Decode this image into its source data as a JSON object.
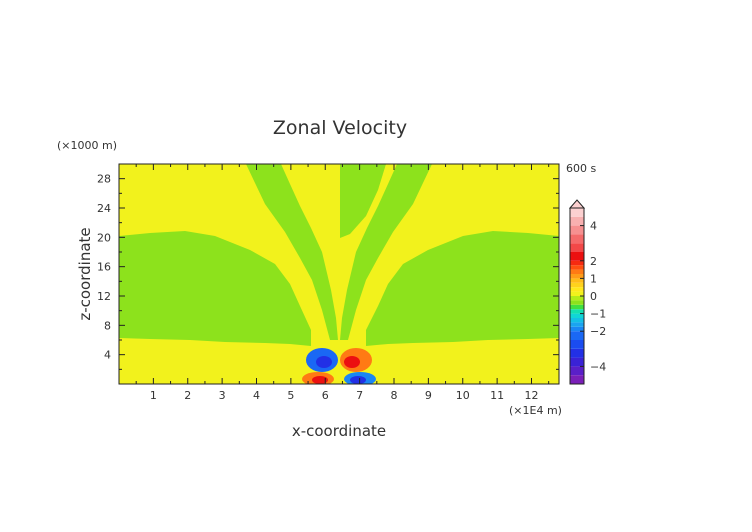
{
  "chart_data": {
    "type": "heatmap",
    "title": "Zonal Velocity",
    "xlabel": "x-coordinate",
    "ylabel": "z-coordinate",
    "x_unit": "(×1E4 m)",
    "y_unit": "(×1000 m)",
    "time_label": "600 s",
    "xlim": [
      0,
      12.8
    ],
    "ylim": [
      0,
      30
    ],
    "x_ticks": [
      "1",
      "2",
      "3",
      "4",
      "5",
      "6",
      "7",
      "8",
      "9",
      "10",
      "11",
      "12"
    ],
    "y_ticks": [
      "4",
      "8",
      "12",
      "16",
      "20",
      "24",
      "28"
    ],
    "colorbar": {
      "tick_labels": [
        "4",
        "2",
        "1",
        "0",
        "−1",
        "−2",
        "−4"
      ],
      "tick_values": [
        4,
        2,
        1,
        0,
        -1,
        -2,
        -4
      ],
      "levels": [
        -5,
        -4.5,
        -4,
        -3.5,
        -3,
        -2.5,
        -2,
        -1.75,
        -1.5,
        -1.25,
        -1,
        -0.75,
        -0.5,
        -0.25,
        0,
        0.25,
        0.5,
        0.75,
        1,
        1.25,
        1.5,
        1.75,
        2,
        2.5,
        3,
        3.5,
        4,
        4.5,
        5
      ],
      "colors": [
        "#7a1fb8",
        "#5a1fc8",
        "#3a22d6",
        "#2230e6",
        "#1a4cf0",
        "#1a68f4",
        "#1a86f4",
        "#1aa4f0",
        "#14bfe6",
        "#10d6d6",
        "#14e0b0",
        "#40e040",
        "#8de21c",
        "#b4ec18",
        "#f2f21c",
        "#ffe81c",
        "#ffd21c",
        "#ffbc18",
        "#ff9c18",
        "#ff7a14",
        "#ff5010",
        "#f62a10",
        "#ec1010",
        "#f24848",
        "#f46a6a",
        "#f69090",
        "#f8b0b0",
        "#fcd0d0"
      ],
      "extend": "max"
    },
    "regions": [
      {
        "level": "0 to 0.25",
        "description": "yellow background (weak positive)"
      },
      {
        "level": "-0.25 to 0",
        "description": "green bands (weak negative)"
      },
      {
        "level": "-4 to -1",
        "description": "blue lobes near x≈6 and x≈7, z≈0–5"
      },
      {
        "level": "1 to 4",
        "description": "red lobes near x≈6 and x≈6.7, z≈0–5"
      }
    ]
  }
}
